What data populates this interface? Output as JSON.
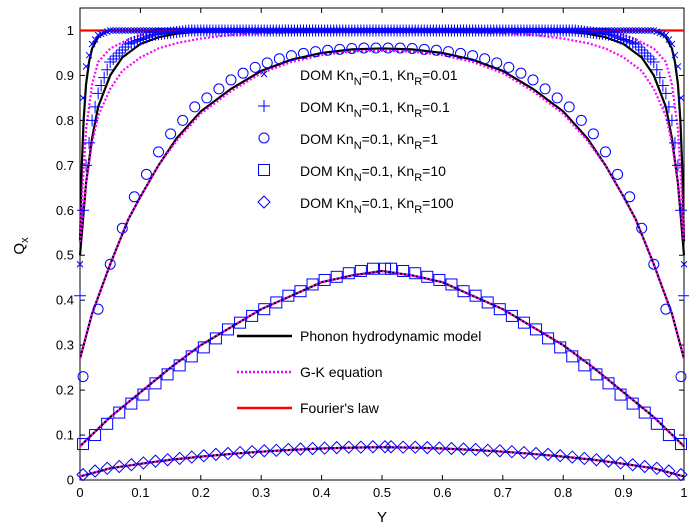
{
  "chart_data": {
    "type": "line",
    "title": "",
    "xlabel": "Y",
    "ylabel_main": "Q",
    "ylabel_sub": "x",
    "xlim": [
      0,
      1
    ],
    "ylim": [
      0,
      1.05
    ],
    "xticks": [
      "0",
      "0.1",
      "0.2",
      "0.3",
      "0.4",
      "0.5",
      "0.6",
      "0.7",
      "0.8",
      "0.9",
      "1"
    ],
    "yticks": [
      "0",
      "0.1",
      "0.2",
      "0.3",
      "0.4",
      "0.5",
      "0.6",
      "0.7",
      "0.8",
      "0.9",
      "1"
    ],
    "grid": false,
    "legend_dom": {
      "placement": "center",
      "entries": [
        {
          "marker": "x",
          "prefix": "DOM Kn",
          "sub1": "N",
          "mid": "=0.1, Kn",
          "sub2": "R",
          "suffix": "=0.01"
        },
        {
          "marker": "plus",
          "prefix": "DOM Kn",
          "sub1": "N",
          "mid": "=0.1, Kn",
          "sub2": "R",
          "suffix": "=0.1"
        },
        {
          "marker": "circle",
          "prefix": "DOM Kn",
          "sub1": "N",
          "mid": "=0.1, Kn",
          "sub2": "R",
          "suffix": "=1"
        },
        {
          "marker": "square",
          "prefix": "DOM Kn",
          "sub1": "N",
          "mid": "=0.1, Kn",
          "sub2": "R",
          "suffix": "=10"
        },
        {
          "marker": "diamond",
          "prefix": "DOM Kn",
          "sub1": "N",
          "mid": "=0.1, Kn",
          "sub2": "R",
          "suffix": "=100"
        }
      ]
    },
    "legend_lines": {
      "placement": "lower-center",
      "entries": [
        {
          "label": "Phonon hydrodynamic model",
          "color": "#000000",
          "style": "solid"
        },
        {
          "label": "G-K equation",
          "color": "#ff00ff",
          "style": "dotted"
        },
        {
          "label": "Fourier's law",
          "color": "#ff0000",
          "style": "solid"
        }
      ]
    },
    "colors": {
      "dom": "#0000ff",
      "hydro": "#000000",
      "gk": "#ff00ff",
      "fourier": "#ff0000"
    },
    "series_dom": [
      {
        "kn_r": "0.01",
        "marker": "x",
        "wall_value": 0.48,
        "center_value": 1.0,
        "near_wall": [
          [
            0.005,
            0.85
          ],
          [
            0.01,
            0.92
          ],
          [
            0.02,
            0.97
          ],
          [
            0.03,
            0.99
          ],
          [
            0.05,
            1.0
          ]
        ]
      },
      {
        "kn_r": "0.1",
        "marker": "plus",
        "wall_value": 0.41,
        "center_value": 1.0,
        "near_wall": [
          [
            0.005,
            0.6
          ],
          [
            0.01,
            0.7
          ],
          [
            0.02,
            0.8
          ],
          [
            0.03,
            0.86
          ],
          [
            0.05,
            0.93
          ],
          [
            0.08,
            0.97
          ],
          [
            0.12,
            0.99
          ],
          [
            0.18,
            1.0
          ]
        ]
      },
      {
        "kn_r": "1",
        "marker": "circle",
        "x": [
          0.005,
          0.03,
          0.05,
          0.07,
          0.09,
          0.11,
          0.13,
          0.15,
          0.17,
          0.19,
          0.21,
          0.23,
          0.25,
          0.27,
          0.29,
          0.31,
          0.33,
          0.35,
          0.37,
          0.39,
          0.41,
          0.43,
          0.45,
          0.47,
          0.49
        ],
        "values": [
          0.23,
          0.38,
          0.48,
          0.56,
          0.63,
          0.68,
          0.73,
          0.77,
          0.8,
          0.83,
          0.85,
          0.87,
          0.89,
          0.905,
          0.918,
          0.928,
          0.937,
          0.944,
          0.949,
          0.953,
          0.956,
          0.958,
          0.96,
          0.961,
          0.961
        ]
      },
      {
        "kn_r": "10",
        "marker": "square",
        "x": [
          0.005,
          0.025,
          0.045,
          0.065,
          0.085,
          0.105,
          0.125,
          0.145,
          0.165,
          0.185,
          0.205,
          0.225,
          0.245,
          0.265,
          0.285,
          0.305,
          0.325,
          0.345,
          0.365,
          0.385,
          0.405,
          0.425,
          0.445,
          0.465,
          0.485,
          0.505
        ],
        "values": [
          0.08,
          0.1,
          0.125,
          0.15,
          0.17,
          0.19,
          0.215,
          0.235,
          0.255,
          0.275,
          0.295,
          0.315,
          0.335,
          0.35,
          0.365,
          0.38,
          0.395,
          0.41,
          0.42,
          0.435,
          0.445,
          0.452,
          0.46,
          0.465,
          0.47,
          0.47
        ]
      },
      {
        "kn_r": "100",
        "marker": "diamond",
        "x": [
          0.005,
          0.025,
          0.045,
          0.065,
          0.085,
          0.105,
          0.125,
          0.145,
          0.165,
          0.185,
          0.205,
          0.225,
          0.245,
          0.265,
          0.285,
          0.305,
          0.325,
          0.345,
          0.365,
          0.385,
          0.405,
          0.425,
          0.445,
          0.465,
          0.485,
          0.505
        ],
        "values": [
          0.012,
          0.02,
          0.026,
          0.03,
          0.034,
          0.038,
          0.042,
          0.045,
          0.048,
          0.051,
          0.054,
          0.057,
          0.059,
          0.061,
          0.063,
          0.065,
          0.066,
          0.068,
          0.069,
          0.07,
          0.071,
          0.072,
          0.073,
          0.073,
          0.074,
          0.074
        ]
      }
    ],
    "series_curves": [
      {
        "name": "Phonon hydrodynamic model",
        "group": "hydro",
        "kn_r": "0.01",
        "x": [
          0,
          0.003,
          0.006,
          0.01,
          0.015,
          0.02,
          0.03,
          0.04,
          0.05,
          0.07,
          0.1,
          0.15,
          0.2,
          0.3,
          0.4,
          0.5
        ],
        "values": [
          0.53,
          0.7,
          0.8,
          0.88,
          0.93,
          0.96,
          0.985,
          0.995,
          1.0,
          1.0,
          1.0,
          1.0,
          1.0,
          1.0,
          1.0,
          1.0
        ]
      },
      {
        "name": "Phonon hydrodynamic model",
        "group": "hydro",
        "kn_r": "0.1",
        "x": [
          0,
          0.005,
          0.01,
          0.02,
          0.03,
          0.05,
          0.07,
          0.1,
          0.13,
          0.16,
          0.2,
          0.25,
          0.3,
          0.4,
          0.5
        ],
        "values": [
          0.5,
          0.58,
          0.66,
          0.76,
          0.83,
          0.9,
          0.94,
          0.97,
          0.985,
          0.993,
          0.998,
          1.0,
          1.0,
          1.0,
          1.0
        ]
      },
      {
        "name": "Phonon hydrodynamic model",
        "group": "hydro",
        "kn_r": "1",
        "x": [
          0,
          0.02,
          0.05,
          0.08,
          0.1,
          0.13,
          0.16,
          0.2,
          0.25,
          0.3,
          0.35,
          0.4,
          0.45,
          0.5
        ],
        "values": [
          0.27,
          0.37,
          0.48,
          0.58,
          0.63,
          0.7,
          0.76,
          0.82,
          0.87,
          0.91,
          0.935,
          0.95,
          0.958,
          0.96
        ]
      },
      {
        "name": "Phonon hydrodynamic model",
        "group": "hydro",
        "kn_r": "10",
        "x": [
          0,
          0.05,
          0.1,
          0.15,
          0.2,
          0.25,
          0.3,
          0.35,
          0.4,
          0.45,
          0.5
        ],
        "values": [
          0.075,
          0.14,
          0.195,
          0.25,
          0.3,
          0.34,
          0.38,
          0.41,
          0.44,
          0.455,
          0.465
        ]
      },
      {
        "name": "Phonon hydrodynamic model",
        "group": "hydro",
        "kn_r": "100",
        "x": [
          0,
          0.05,
          0.1,
          0.15,
          0.2,
          0.25,
          0.3,
          0.35,
          0.4,
          0.45,
          0.5
        ],
        "values": [
          0.008,
          0.026,
          0.036,
          0.045,
          0.052,
          0.058,
          0.063,
          0.067,
          0.07,
          0.072,
          0.073
        ]
      },
      {
        "name": "G-K equation",
        "group": "gk",
        "kn_r": "0.01",
        "x": [
          0,
          0.01,
          0.02,
          0.03,
          0.05,
          0.08,
          0.1,
          0.15,
          0.2,
          0.3,
          0.4,
          0.5
        ],
        "values": [
          0.55,
          0.78,
          0.88,
          0.93,
          0.96,
          0.98,
          0.99,
          0.995,
          0.998,
          1.0,
          1.0,
          1.0
        ]
      },
      {
        "name": "G-K equation",
        "group": "gk",
        "kn_r": "0.1",
        "x": [
          0,
          0.01,
          0.02,
          0.03,
          0.05,
          0.07,
          0.1,
          0.13,
          0.16,
          0.2,
          0.25,
          0.3,
          0.4,
          0.5
        ],
        "values": [
          0.53,
          0.66,
          0.75,
          0.81,
          0.87,
          0.91,
          0.94,
          0.96,
          0.972,
          0.982,
          0.99,
          0.994,
          0.997,
          0.998
        ]
      },
      {
        "name": "G-K equation",
        "group": "gk",
        "kn_r": "1",
        "x": [
          0,
          0.02,
          0.05,
          0.08,
          0.1,
          0.13,
          0.16,
          0.2,
          0.25,
          0.3,
          0.35,
          0.4,
          0.45,
          0.5
        ],
        "values": [
          0.27,
          0.37,
          0.48,
          0.58,
          0.63,
          0.7,
          0.755,
          0.815,
          0.865,
          0.905,
          0.93,
          0.945,
          0.953,
          0.955
        ]
      },
      {
        "name": "G-K equation",
        "group": "gk",
        "kn_r": "10",
        "x": [
          0,
          0.05,
          0.1,
          0.15,
          0.2,
          0.25,
          0.3,
          0.35,
          0.4,
          0.45,
          0.5
        ],
        "values": [
          0.075,
          0.14,
          0.195,
          0.25,
          0.3,
          0.34,
          0.38,
          0.41,
          0.44,
          0.455,
          0.465
        ]
      },
      {
        "name": "G-K equation",
        "group": "gk",
        "kn_r": "100",
        "x": [
          0,
          0.05,
          0.1,
          0.15,
          0.2,
          0.25,
          0.3,
          0.35,
          0.4,
          0.45,
          0.5
        ],
        "values": [
          0.008,
          0.026,
          0.036,
          0.045,
          0.052,
          0.058,
          0.063,
          0.067,
          0.07,
          0.072,
          0.073
        ]
      },
      {
        "name": "Fourier's law",
        "group": "fourier",
        "x": [
          0,
          1
        ],
        "values": [
          1.0,
          1.0
        ]
      }
    ]
  }
}
